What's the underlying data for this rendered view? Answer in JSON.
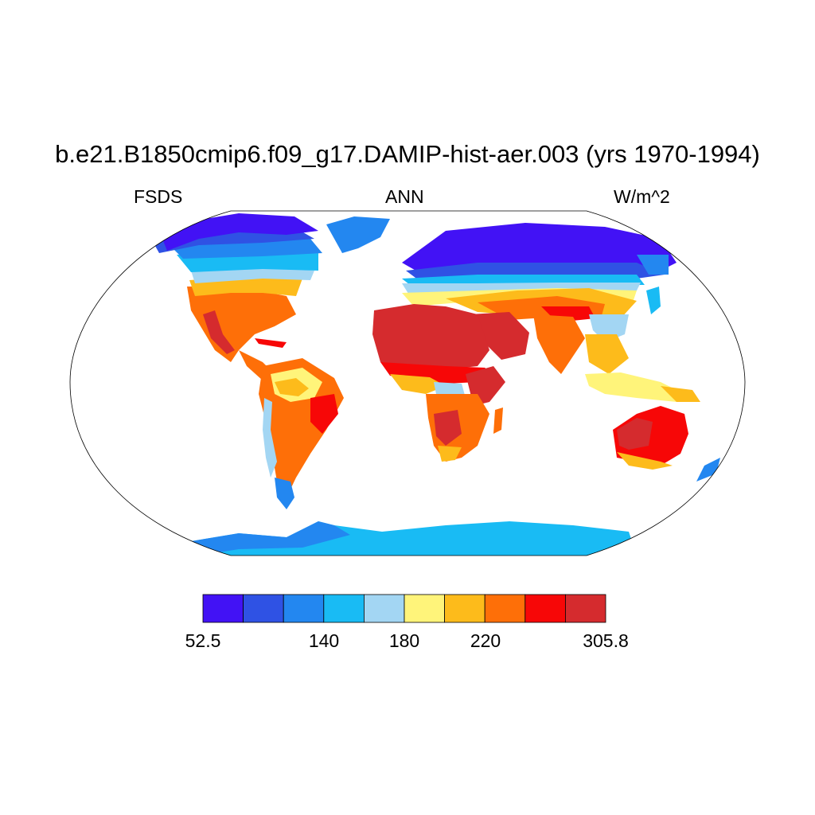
{
  "title": "b.e21.B1850cmip6.f09_g17.DAMIP-hist-aer.003 (yrs 1970-1994)",
  "subtitle_left": "FSDS",
  "subtitle_center": "ANN",
  "subtitle_right": "W/m^2",
  "colorbar": {
    "colors": [
      "#4212f5",
      "#2f52e4",
      "#2387f0",
      "#19bbf4",
      "#a3d6f3",
      "#fff47a",
      "#fdbb1b",
      "#fe6f08",
      "#f70707",
      "#d52b2e"
    ],
    "labels": [
      "52.5",
      "140",
      "180",
      "220",
      "305.8"
    ]
  },
  "map": {
    "projection": "robinson",
    "ocean_color": "#ffffff",
    "outline_color": "#000000"
  }
}
